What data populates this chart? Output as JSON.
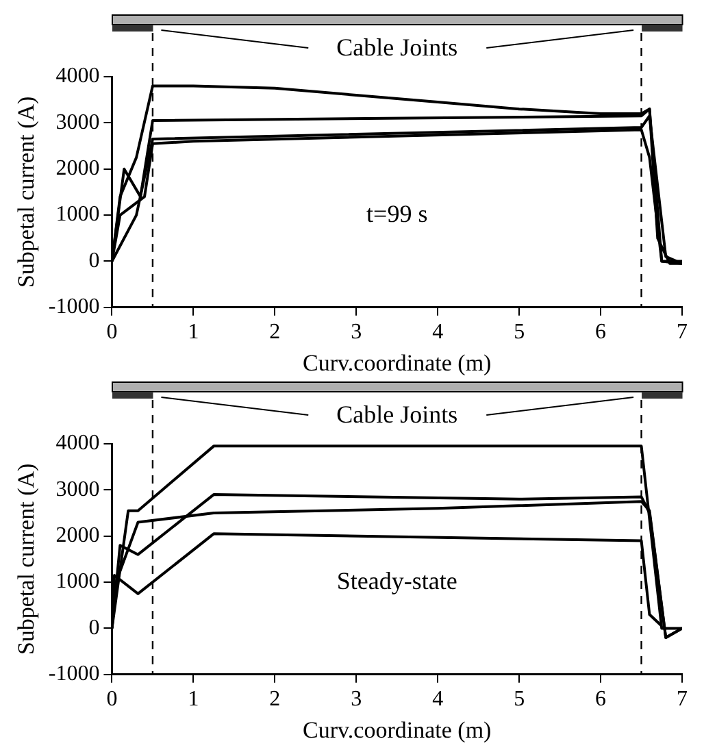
{
  "chart_data": [
    {
      "type": "line",
      "xlabel": "Curv.coordinate (m)",
      "ylabel": "Subpetal current (A)",
      "annotations": [
        "Cable Joints",
        "t=99 s"
      ],
      "xlim": [
        0,
        7
      ],
      "xticks": [
        0,
        1,
        2,
        3,
        4,
        5,
        6,
        7
      ],
      "ylim": [
        -1000,
        4000
      ],
      "yticks": [
        -1000,
        0,
        1000,
        2000,
        3000,
        4000
      ],
      "grid": false,
      "legend": false,
      "marker": "none",
      "line_style": "solid",
      "ref_lines": [
        {
          "axis": "x",
          "value": 0.5,
          "line_style": "dashed",
          "color": "#000000"
        },
        {
          "axis": "x",
          "value": 6.5,
          "line_style": "dashed",
          "color": "#000000"
        }
      ],
      "series": [
        {
          "color": "#000000",
          "x": [
            0,
            0.1,
            0.3,
            0.5,
            1,
            2,
            3,
            4,
            5,
            6,
            6.5,
            6.6,
            6.7,
            6.85,
            7
          ],
          "values": [
            0,
            1400,
            2250,
            3800,
            3800,
            3750,
            3600,
            3450,
            3300,
            3200,
            3200,
            3300,
            500,
            -50,
            -50
          ]
        },
        {
          "color": "#000000",
          "x": [
            0,
            0.15,
            0.35,
            0.5,
            6.5,
            6.6,
            6.75,
            7
          ],
          "values": [
            0,
            2000,
            1400,
            3050,
            3150,
            3300,
            0,
            0
          ]
        },
        {
          "color": "#000000",
          "x": [
            0,
            0.1,
            0.4,
            0.5,
            1,
            6.5,
            6.6,
            6.75,
            7
          ],
          "values": [
            0,
            1000,
            1400,
            2550,
            2600,
            2850,
            2250,
            0,
            -50
          ]
        },
        {
          "color": "#000000",
          "x": [
            0,
            0.3,
            0.5,
            6.5,
            6.6,
            6.8,
            7
          ],
          "values": [
            0,
            1000,
            2650,
            2900,
            3150,
            100,
            -50
          ]
        }
      ]
    },
    {
      "type": "line",
      "xlabel": "Curv.coordinate (m)",
      "ylabel": "Subpetal current (A)",
      "annotations": [
        "Cable Joints",
        "Steady-state"
      ],
      "xlim": [
        0,
        7
      ],
      "xticks": [
        0,
        1,
        2,
        3,
        4,
        5,
        6,
        7
      ],
      "ylim": [
        -1000,
        4000
      ],
      "yticks": [
        -1000,
        0,
        1000,
        2000,
        3000,
        4000
      ],
      "grid": false,
      "legend": false,
      "marker": "none",
      "line_style": "solid",
      "ref_lines": [
        {
          "axis": "x",
          "value": 0.5,
          "line_style": "dashed",
          "color": "#000000"
        },
        {
          "axis": "x",
          "value": 6.5,
          "line_style": "dashed",
          "color": "#000000"
        }
      ],
      "series": [
        {
          "color": "#000000",
          "x": [
            0,
            0.2,
            0.32,
            1.25,
            6.5,
            6.75,
            7
          ],
          "values": [
            0,
            2550,
            2550,
            3950,
            3950,
            0,
            0
          ]
        },
        {
          "color": "#000000",
          "x": [
            0,
            0.03,
            0.32,
            1.25,
            6.5,
            6.6,
            6.75
          ],
          "values": [
            0,
            1150,
            750,
            2050,
            1900,
            300,
            50
          ]
        },
        {
          "color": "#000000",
          "x": [
            0,
            0.05,
            0.32,
            1.25,
            4,
            6.5,
            6.6,
            6.8,
            7
          ],
          "values": [
            0,
            1000,
            2300,
            2500,
            2600,
            2750,
            2550,
            -200,
            0
          ]
        },
        {
          "color": "#000000",
          "x": [
            0,
            0.1,
            0.32,
            1.25,
            5,
            6.5,
            6.6,
            6.8,
            7
          ],
          "values": [
            0,
            1800,
            1600,
            2900,
            2800,
            2850,
            2500,
            -200,
            0
          ]
        }
      ]
    }
  ]
}
